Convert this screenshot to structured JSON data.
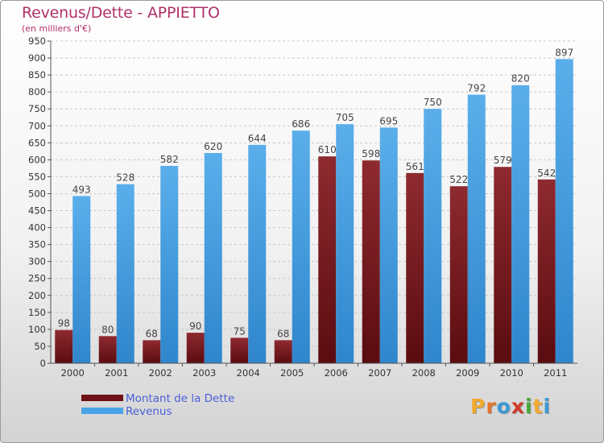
{
  "title": "Revenus/Dette - APPIETTO",
  "subtitle": "(en milliers d'€)",
  "logo": {
    "text": "Proxiti",
    "letters": [
      "P",
      "r",
      "o",
      "x",
      "i",
      "t",
      "i"
    ],
    "colors": [
      "#f2a92e",
      "#e8732a",
      "#3b9ad6",
      "#d03a2a",
      "#47a83a",
      "#f2a92e",
      "#3b9ad6"
    ]
  },
  "colors": {
    "dette": "#7b1a1e",
    "revenus": "#4aa3e6",
    "title": "#b0306a",
    "legend_text": "#4a5fd8"
  },
  "chart_data": {
    "type": "bar",
    "categories": [
      "2000",
      "2001",
      "2002",
      "2003",
      "2004",
      "2005",
      "2006",
      "2007",
      "2008",
      "2009",
      "2010",
      "2011"
    ],
    "series": [
      {
        "name": "Montant de la Dette",
        "values": [
          98,
          80,
          68,
          90,
          75,
          68,
          610,
          598,
          561,
          522,
          579,
          542
        ]
      },
      {
        "name": "Revenus",
        "values": [
          493,
          528,
          582,
          620,
          644,
          686,
          705,
          695,
          750,
          792,
          820,
          897
        ]
      }
    ],
    "yticks": [
      "0",
      "50",
      "100",
      "150",
      "200",
      "250",
      "300",
      "350",
      "400",
      "450",
      "500",
      "550",
      "600",
      "650",
      "700",
      "750",
      "800",
      "850",
      "900",
      "950"
    ],
    "ylim": [
      0,
      950
    ],
    "grid": true,
    "legend_position": "bottom-left"
  }
}
